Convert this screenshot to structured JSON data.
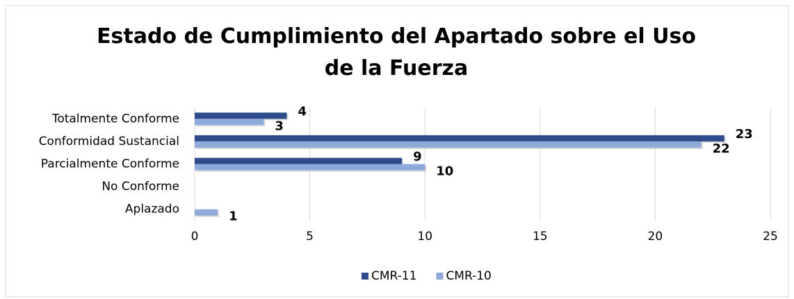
{
  "chart_data": {
    "type": "barh",
    "title": "Estado de Cumplimiento del Apartado sobre el Uso de la Fuerza",
    "categories": [
      "Totalmente Conforme",
      "Conformidad Sustancial",
      "Parcialmente Conforme",
      "No Conforme",
      "Aplazado"
    ],
    "series": [
      {
        "name": "CMR-11",
        "color": "#2f4b8c",
        "values": [
          4,
          23,
          9,
          null,
          null
        ]
      },
      {
        "name": "CMR-10",
        "color": "#8eaadb",
        "values": [
          3,
          22,
          10,
          null,
          1
        ]
      }
    ],
    "xlim": [
      0,
      25
    ],
    "xticks": [
      0,
      5,
      10,
      15,
      20,
      25
    ],
    "grid": true,
    "legend": "bottom"
  }
}
